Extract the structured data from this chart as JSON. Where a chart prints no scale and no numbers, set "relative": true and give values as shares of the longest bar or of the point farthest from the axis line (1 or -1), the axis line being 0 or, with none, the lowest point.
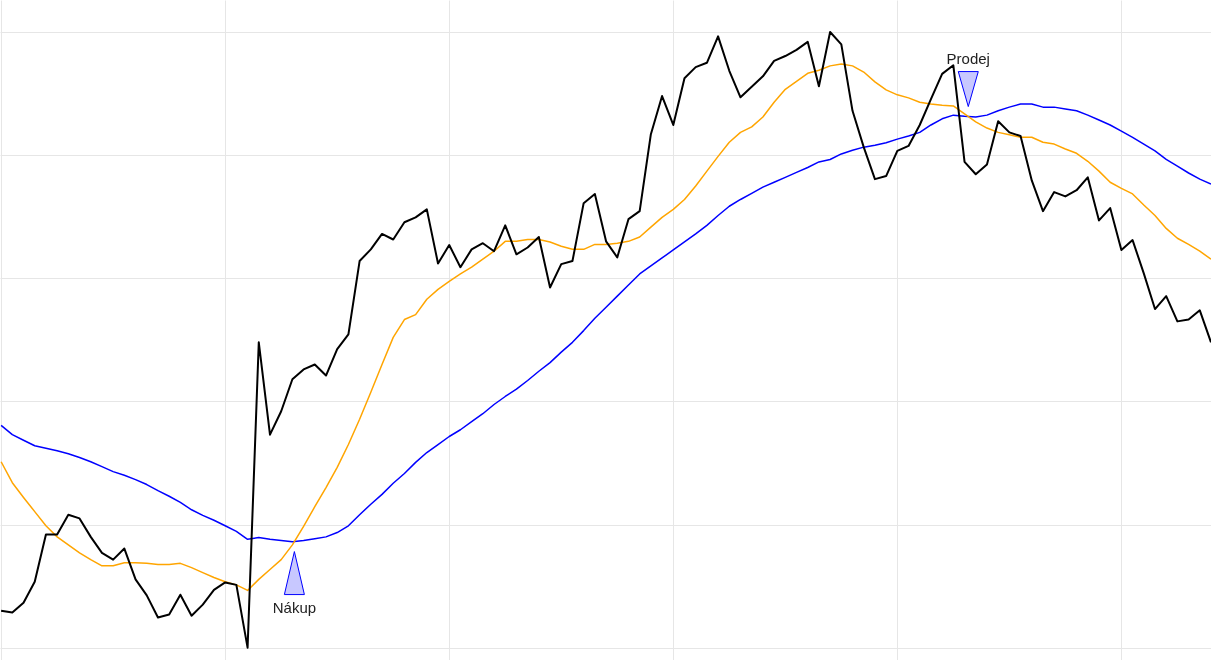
{
  "chart_data": {
    "type": "line",
    "relative": true,
    "grid": true,
    "annotations": [
      "Nákup",
      "Prodej"
    ],
    "categories": [
      null,
      null,
      null,
      null,
      null,
      null,
      null,
      null,
      null,
      null,
      null,
      null,
      null,
      null,
      null,
      null,
      null,
      null,
      null,
      null,
      null,
      null,
      null,
      null,
      null,
      null,
      null,
      null,
      null,
      null,
      null,
      null,
      null,
      null,
      null,
      null,
      null,
      null,
      null,
      null,
      null,
      null,
      null,
      null,
      null,
      null,
      null,
      null,
      null,
      null,
      null,
      null,
      null,
      null,
      null,
      null,
      null,
      null,
      null,
      null,
      null,
      null,
      null,
      null,
      null,
      null,
      null,
      null,
      null,
      null,
      null,
      null,
      null,
      null,
      null,
      null,
      null,
      null,
      null,
      null,
      null,
      null,
      null,
      null,
      null,
      null,
      null,
      null,
      null,
      null,
      null,
      null,
      null,
      null,
      null,
      null,
      null,
      null,
      null,
      null,
      null,
      null,
      null,
      null,
      null,
      null,
      null,
      null,
      null
    ],
    "series": [
      {
        "color": "#0000ff",
        "values": [
          0.361,
          0.346,
          0.337,
          0.328,
          0.324,
          0.32,
          0.315,
          0.309,
          0.302,
          0.294,
          0.286,
          0.28,
          0.273,
          0.265,
          0.255,
          0.246,
          0.236,
          0.224,
          0.215,
          0.207,
          0.198,
          0.189,
          0.176,
          0.179,
          0.176,
          0.174,
          0.172,
          0.174,
          0.177,
          0.18,
          0.187,
          0.198,
          0.216,
          0.233,
          0.249,
          0.267,
          0.283,
          0.301,
          0.317,
          0.33,
          0.343,
          0.354,
          0.367,
          0.38,
          0.395,
          0.408,
          0.42,
          0.434,
          0.449,
          0.463,
          0.48,
          0.496,
          0.515,
          0.535,
          0.553,
          0.571,
          0.589,
          0.607,
          0.62,
          0.633,
          0.646,
          0.659,
          0.672,
          0.686,
          0.702,
          0.717,
          0.728,
          0.738,
          0.748,
          0.756,
          0.764,
          0.772,
          0.78,
          0.789,
          0.793,
          0.802,
          0.808,
          0.813,
          0.816,
          0.82,
          0.826,
          0.831,
          0.837,
          0.849,
          0.859,
          0.865,
          0.863,
          0.862,
          0.865,
          0.872,
          0.878,
          0.883,
          0.883,
          0.878,
          0.878,
          0.875,
          0.872,
          0.865,
          0.857,
          0.849,
          0.839,
          0.829,
          0.818,
          0.807,
          0.793,
          0.782,
          0.771,
          0.761,
          0.753
        ]
      },
      {
        "color": "#ffa500",
        "values": [
          0.302,
          0.268,
          0.244,
          0.221,
          0.198,
          0.18,
          0.167,
          0.154,
          0.143,
          0.133,
          0.133,
          0.138,
          0.138,
          0.137,
          0.135,
          0.135,
          0.137,
          0.13,
          0.122,
          0.114,
          0.107,
          0.102,
          0.093,
          0.111,
          0.127,
          0.143,
          0.167,
          0.197,
          0.229,
          0.26,
          0.293,
          0.33,
          0.371,
          0.415,
          0.46,
          0.504,
          0.533,
          0.541,
          0.566,
          0.582,
          0.595,
          0.607,
          0.618,
          0.631,
          0.644,
          0.66,
          0.66,
          0.663,
          0.663,
          0.659,
          0.652,
          0.647,
          0.647,
          0.655,
          0.655,
          0.657,
          0.66,
          0.667,
          0.683,
          0.699,
          0.712,
          0.728,
          0.75,
          0.774,
          0.798,
          0.821,
          0.837,
          0.846,
          0.862,
          0.886,
          0.907,
          0.92,
          0.933,
          0.938,
          0.945,
          0.948,
          0.945,
          0.935,
          0.919,
          0.906,
          0.898,
          0.893,
          0.886,
          0.883,
          0.881,
          0.88,
          0.867,
          0.854,
          0.844,
          0.837,
          0.833,
          0.829,
          0.829,
          0.821,
          0.818,
          0.81,
          0.803,
          0.79,
          0.774,
          0.756,
          0.746,
          0.737,
          0.719,
          0.702,
          0.681,
          0.665,
          0.655,
          0.644,
          0.631
        ]
      },
      {
        "color": "#000000",
        "values": [
          0.06,
          0.057,
          0.073,
          0.107,
          0.184,
          0.184,
          0.216,
          0.21,
          0.18,
          0.154,
          0.143,
          0.161,
          0.111,
          0.085,
          0.049,
          0.054,
          0.086,
          0.052,
          0.07,
          0.094,
          0.106,
          0.102,
          0,
          0.496,
          0.346,
          0.384,
          0.436,
          0.452,
          0.46,
          0.442,
          0.485,
          0.509,
          0.628,
          0.647,
          0.672,
          0.663,
          0.691,
          0.699,
          0.712,
          0.624,
          0.654,
          0.618,
          0.647,
          0.657,
          0.644,
          0.686,
          0.639,
          0.65,
          0.667,
          0.585,
          0.623,
          0.628,
          0.722,
          0.737,
          0.66,
          0.634,
          0.696,
          0.709,
          0.834,
          0.896,
          0.849,
          0.925,
          0.943,
          0.95,
          0.993,
          0.937,
          0.894,
          0.911,
          0.928,
          0.953,
          0.961,
          0.971,
          0.984,
          0.912,
          1,
          0.98,
          0.872,
          0.813,
          0.761,
          0.766,
          0.807,
          0.815,
          0.849,
          0.891,
          0.932,
          0.946,
          0.789,
          0.769,
          0.785,
          0.855,
          0.837,
          0.831,
          0.759,
          0.709,
          0.74,
          0.733,
          0.743,
          0.764,
          0.694,
          0.714,
          0.646,
          0.662,
          0.608,
          0.55,
          0.571,
          0.53,
          0.533,
          0.548,
          0.496
        ]
      }
    ]
  }
}
